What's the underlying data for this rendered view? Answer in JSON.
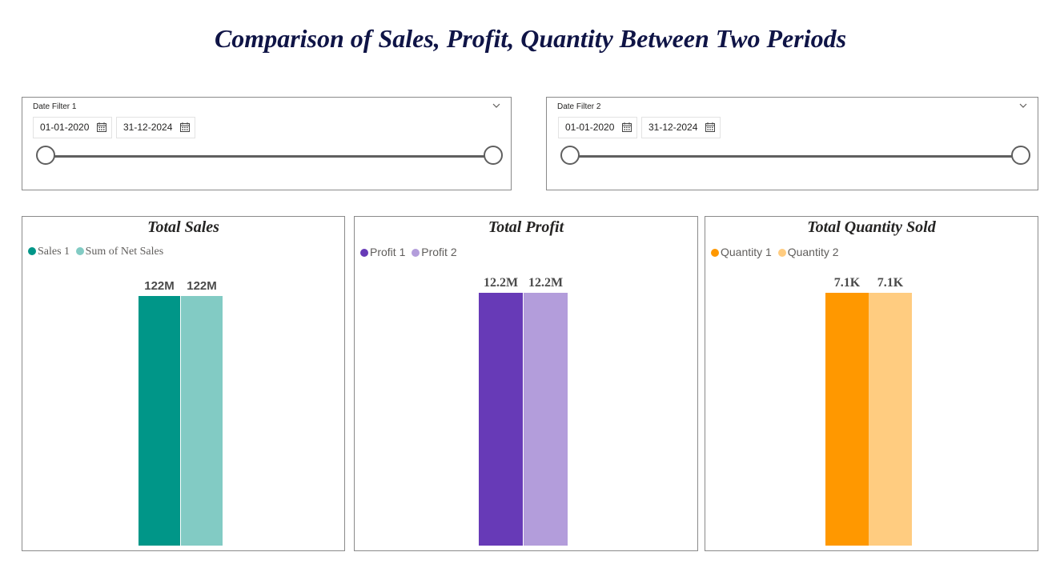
{
  "page": {
    "title": "Comparison of Sales, Profit, Quantity Between Two Periods"
  },
  "filters": [
    {
      "label": "Date Filter 1",
      "start": "01-01-2020",
      "end": "31-12-2024",
      "icons": {
        "chevron": "chevron-down-icon",
        "calendar": "calendar-icon"
      }
    },
    {
      "label": "Date Filter 2",
      "start": "01-01-2020",
      "end": "31-12-2024",
      "icons": {
        "chevron": "chevron-down-icon",
        "calendar": "calendar-icon"
      }
    }
  ],
  "chart_data": [
    {
      "type": "bar",
      "title": "Total Sales",
      "ylim": [
        0,
        122
      ],
      "legend_position": "top-left",
      "series": [
        {
          "name": "Sales 1",
          "values": [
            122
          ],
          "label": "122M",
          "color": "#009688"
        },
        {
          "name": "Sum of Net Sales",
          "values": [
            122
          ],
          "label": "122M",
          "color": "#82cbc4"
        }
      ]
    },
    {
      "type": "bar",
      "title": "Total Profit",
      "ylim": [
        0,
        12.2
      ],
      "legend_position": "top-left",
      "series": [
        {
          "name": "Profit 1",
          "values": [
            12.2
          ],
          "label": "12.2M",
          "color": "#673ab7"
        },
        {
          "name": "Profit 2",
          "values": [
            12.2
          ],
          "label": "12.2M",
          "color": "#b39ddb"
        }
      ]
    },
    {
      "type": "bar",
      "title": "Total Quantity Sold",
      "ylim": [
        0,
        7.1
      ],
      "legend_position": "top-left",
      "series": [
        {
          "name": "Quantity 1",
          "values": [
            7.1
          ],
          "label": "7.1K",
          "color": "#ff9800"
        },
        {
          "name": "Quantity 2",
          "values": [
            7.1
          ],
          "label": "7.1K",
          "color": "#ffcc80"
        }
      ]
    }
  ]
}
